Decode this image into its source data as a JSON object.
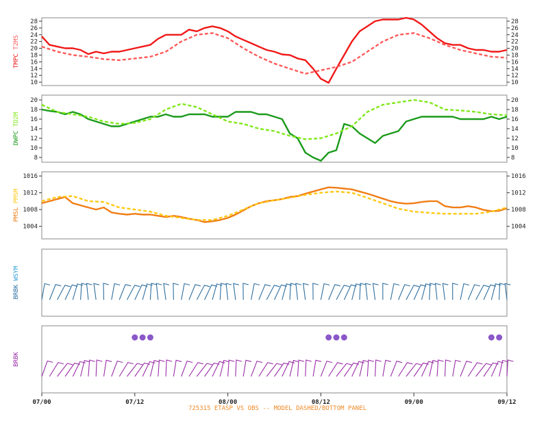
{
  "caption": "725315   ETASP VS OBS -- MODEL DASHED/BOTTOM PANEL",
  "colors": {
    "caption": "#f08a28",
    "frame": "#888888",
    "tmpc": "#f01818",
    "t2ms": "#ff5a5a",
    "dwpc": "#1a9a1a",
    "td2m": "#80e81a",
    "pmsl": "#f07d14",
    "pmsm": "#ffc814",
    "brbk_obs": "#2e6e9e",
    "wsym": "#2e9ed8",
    "brbk_model": "#9a2ea8",
    "wx_dots": "#8a58c8"
  },
  "chart_data": {
    "type": "line",
    "x_tick_labels": [
      "07/00",
      "07/12",
      "08/00",
      "08/12",
      "09/00",
      "09/12"
    ],
    "x_ticks_hours": [
      0,
      12,
      24,
      36,
      48,
      60
    ],
    "x_range_hours": [
      0,
      60
    ],
    "panels": [
      {
        "id": "temp",
        "ylabel_obs": "TMPC",
        "ylabel_model": "T2MS",
        "yticks": [
          10,
          12,
          14,
          16,
          18,
          20,
          22,
          24,
          26,
          28
        ],
        "ylim": [
          9,
          29
        ],
        "series": [
          {
            "name": "TMPC",
            "style": "solid",
            "color_key": "tmpc",
            "x": [
              0,
              1,
              2,
              3,
              4,
              5,
              6,
              7,
              8,
              9,
              10,
              11,
              12,
              13,
              14,
              15,
              16,
              17,
              18,
              19,
              20,
              21,
              22,
              23,
              24,
              25,
              26,
              27,
              28,
              29,
              30,
              31,
              32,
              33,
              34,
              35,
              36,
              37,
              38,
              39,
              40,
              41,
              42,
              43,
              44,
              45,
              46,
              47,
              48,
              49,
              50,
              51,
              52,
              53,
              54,
              55,
              56,
              57,
              58,
              59,
              60
            ],
            "y": [
              23.5,
              21,
              20.5,
              20,
              20,
              19.5,
              18.3,
              19,
              18.5,
              19,
              19,
              19.5,
              20,
              20.5,
              21,
              22.8,
              24,
              24,
              24,
              25.5,
              25,
              26,
              26.5,
              26,
              25,
              23.5,
              22.5,
              21.5,
              20.5,
              19.5,
              19,
              18.2,
              18,
              17,
              16.5,
              14,
              11,
              9.8,
              14,
              18,
              22,
              25,
              26.5,
              28,
              28.5,
              28.5,
              28.5,
              29,
              28.5,
              27,
              25,
              23,
              21.5,
              21,
              21,
              20,
              19.5,
              19.5,
              19,
              19,
              19.5
            ]
          },
          {
            "name": "T2MS",
            "style": "dashed",
            "color_key": "t2ms",
            "x": [
              0,
              2,
              4,
              6,
              8,
              10,
              12,
              14,
              16,
              18,
              20,
              22,
              24,
              26,
              28,
              30,
              32,
              34,
              36,
              38,
              40,
              42,
              44,
              46,
              48,
              50,
              52,
              54,
              56,
              58,
              60
            ],
            "y": [
              20.5,
              19,
              18,
              17.5,
              16.8,
              16.5,
              17,
              17.5,
              19,
              22,
              24,
              24.5,
              23,
              20,
              17.5,
              15.5,
              14,
              12.5,
              13.5,
              14.5,
              16,
              19,
              22,
              24,
              24.5,
              23,
              21,
              19.5,
              18.5,
              17.5,
              17.2
            ]
          }
        ]
      },
      {
        "id": "dew",
        "ylabel_obs": "DWPC",
        "ylabel_model": "TD2M",
        "yticks": [
          8,
          10,
          12,
          14,
          16,
          18,
          20
        ],
        "ylim": [
          7,
          21
        ],
        "series": [
          {
            "name": "DWPC",
            "style": "solid",
            "color_key": "dwpc",
            "x": [
              0,
              1,
              2,
              3,
              4,
              5,
              6,
              7,
              8,
              9,
              10,
              11,
              12,
              13,
              14,
              15,
              16,
              17,
              18,
              19,
              20,
              21,
              22,
              23,
              24,
              25,
              26,
              27,
              28,
              29,
              30,
              31,
              32,
              33,
              34,
              35,
              36,
              37,
              38,
              39,
              40,
              41,
              42,
              43,
              44,
              45,
              46,
              47,
              48,
              49,
              50,
              51,
              52,
              53,
              54,
              55,
              56,
              57,
              58,
              59,
              60
            ],
            "y": [
              18,
              17.7,
              17.5,
              17,
              17.5,
              17,
              16,
              15.5,
              15,
              14.5,
              14.5,
              15,
              15.5,
              16,
              16.5,
              16.5,
              17,
              16.5,
              16.5,
              17,
              17,
              17,
              16.5,
              16.5,
              16.5,
              17.5,
              17.5,
              17.5,
              17,
              17,
              16.5,
              16,
              13,
              12,
              9,
              8,
              7.3,
              9,
              9.5,
              15,
              14.5,
              13,
              12,
              11,
              12.5,
              13,
              13.5,
              15.5,
              16,
              16.5,
              16.5,
              16.5,
              16.5,
              16.5,
              16,
              16,
              16,
              16,
              16.5,
              16,
              16.5
            ]
          },
          {
            "name": "TD2M",
            "style": "dashed",
            "color_key": "td2m",
            "x": [
              0,
              2,
              4,
              6,
              8,
              10,
              12,
              14,
              16,
              18,
              20,
              22,
              24,
              26,
              28,
              30,
              32,
              34,
              36,
              38,
              40,
              42,
              44,
              46,
              48,
              50,
              52,
              54,
              56,
              58,
              60
            ],
            "y": [
              19,
              17.5,
              17,
              16.5,
              15.5,
              15,
              15.2,
              16,
              18,
              19.2,
              18.5,
              17,
              15.5,
              15,
              14,
              13.5,
              12.5,
              11.8,
              12,
              13,
              14.5,
              17.5,
              19,
              19.5,
              20,
              19.5,
              18,
              17.8,
              17.5,
              17,
              16.8
            ]
          }
        ]
      },
      {
        "id": "pres",
        "ylabel_obs": "PMSL",
        "ylabel_model": "PMSM",
        "yticks": [
          1004,
          1008,
          1012,
          1016
        ],
        "ylim": [
          1001,
          1017
        ],
        "series": [
          {
            "name": "PMSL",
            "style": "solid",
            "color_key": "pmsl",
            "x": [
              0,
              1,
              2,
              3,
              4,
              5,
              6,
              7,
              8,
              9,
              10,
              11,
              12,
              13,
              14,
              15,
              16,
              17,
              18,
              19,
              20,
              21,
              22,
              23,
              24,
              25,
              26,
              27,
              28,
              29,
              30,
              31,
              32,
              33,
              34,
              35,
              36,
              37,
              38,
              39,
              40,
              41,
              42,
              43,
              44,
              45,
              46,
              47,
              48,
              49,
              50,
              51,
              52,
              53,
              54,
              55,
              56,
              57,
              58,
              59,
              60
            ],
            "y": [
              1009.5,
              1010,
              1010.5,
              1011,
              1009.5,
              1009,
              1008.5,
              1008,
              1008.5,
              1007.3,
              1007,
              1006.8,
              1007,
              1006.8,
              1006.8,
              1006.5,
              1006.2,
              1006.5,
              1006.2,
              1005.8,
              1005.5,
              1005,
              1005.2,
              1005.5,
              1006,
              1006.8,
              1007.8,
              1008.8,
              1009.5,
              1010,
              1010.2,
              1010.5,
              1011,
              1011.2,
              1011.8,
              1012.3,
              1012.8,
              1013.3,
              1013.2,
              1013,
              1012.8,
              1012.3,
              1011.8,
              1011.2,
              1010.6,
              1010,
              1009.6,
              1009.4,
              1009.5,
              1009.8,
              1010,
              1010,
              1008.8,
              1008.5,
              1008.5,
              1008.8,
              1008.5,
              1007.9,
              1007.6,
              1007.7,
              1008.3
            ]
          },
          {
            "name": "PMSM",
            "style": "dashed",
            "color_key": "pmsm",
            "x": [
              0,
              2,
              4,
              6,
              8,
              10,
              12,
              14,
              16,
              18,
              20,
              22,
              24,
              26,
              28,
              30,
              32,
              34,
              36,
              38,
              40,
              42,
              44,
              46,
              48,
              50,
              52,
              54,
              56,
              58,
              60
            ],
            "y": [
              1010,
              1011,
              1011.2,
              1010,
              1009.8,
              1008.5,
              1008,
              1007.5,
              1006.5,
              1006,
              1005.5,
              1005.5,
              1006.5,
              1008,
              1009.5,
              1010.2,
              1010.8,
              1011.5,
              1012,
              1012.3,
              1012,
              1010.8,
              1009.5,
              1008.2,
              1007.5,
              1007.2,
              1007,
              1007,
              1007,
              1007.5,
              1008.5
            ]
          }
        ]
      }
    ],
    "barb_panels": [
      {
        "id": "obs_barbs",
        "ylabel_obs": "BRBK",
        "ylabel_model": "WSYM",
        "color_key": "brbk_obs"
      },
      {
        "id": "model_barbs",
        "ylabel_obs": "BRBK",
        "ylabel_model": "",
        "color_key": "brbk_model",
        "wx_dot_groups": [
          {
            "x_hours": [
              12,
              13,
              14
            ]
          },
          {
            "x_hours": [
              37,
              38,
              39
            ]
          },
          {
            "x_hours": [
              58,
              59
            ]
          }
        ]
      }
    ]
  }
}
